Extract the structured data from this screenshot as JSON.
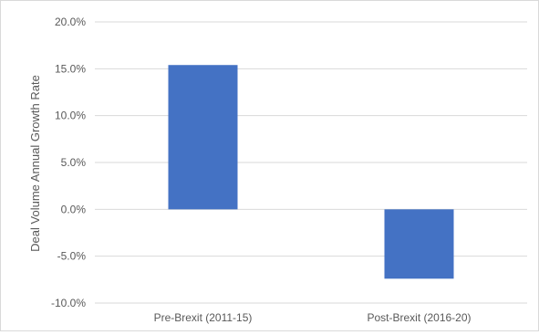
{
  "chart_data": {
    "type": "bar",
    "title": "",
    "xlabel": "",
    "ylabel": "Deal Volume Annual Growth Rate",
    "categories": [
      "Pre-Brexit (2011-15)",
      "Post-Brexit (2016-20)"
    ],
    "values": [
      15.4,
      -7.4
    ],
    "ylim": [
      -10,
      20
    ],
    "yticks": [
      20,
      15,
      10,
      5,
      0,
      -5,
      -10
    ],
    "ytick_labels": [
      "20.0%",
      "15.0%",
      "10.0%",
      "5.0%",
      "0.0%",
      "-5.0%",
      "-10.0%"
    ],
    "grid": true,
    "legend": "none",
    "bar_color": "#4472c4",
    "grid_color": "#d9d9d9"
  }
}
